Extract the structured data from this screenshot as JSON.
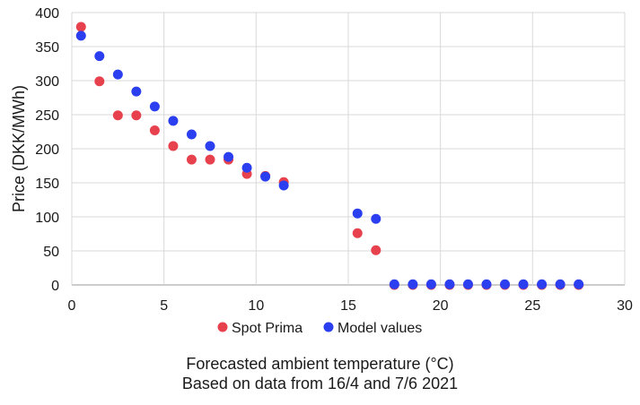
{
  "chart_data": {
    "type": "scatter",
    "ylabel": "Price (DKK/MWh)",
    "xlabel": "Forecasted ambient temperature (°C)",
    "subtitle": "Based on data from 16/4 and 7/6 2021",
    "xlim": [
      0,
      30
    ],
    "ylim": [
      0,
      400
    ],
    "xticks": [
      0,
      5,
      10,
      15,
      20,
      25,
      30
    ],
    "yticks": [
      0,
      50,
      100,
      150,
      200,
      250,
      300,
      350,
      400
    ],
    "grid": true,
    "legend_position": "bottom",
    "series": [
      {
        "name": "Spot Prima",
        "color": "#e8414e",
        "points": [
          [
            0.5,
            379
          ],
          [
            1.5,
            299
          ],
          [
            2.5,
            249
          ],
          [
            3.5,
            249
          ],
          [
            4.5,
            227
          ],
          [
            5.5,
            204
          ],
          [
            6.5,
            184
          ],
          [
            7.5,
            184
          ],
          [
            8.5,
            184
          ],
          [
            9.5,
            163
          ],
          [
            10.5,
            160
          ],
          [
            11.5,
            151
          ],
          [
            15.5,
            76
          ],
          [
            16.5,
            51
          ],
          [
            17.5,
            0
          ],
          [
            18.5,
            0
          ],
          [
            19.5,
            0
          ],
          [
            20.5,
            0
          ],
          [
            21.5,
            0
          ],
          [
            22.5,
            0
          ],
          [
            23.5,
            0
          ],
          [
            24.5,
            0
          ],
          [
            25.5,
            0
          ],
          [
            26.5,
            0
          ],
          [
            27.5,
            0
          ]
        ]
      },
      {
        "name": "Model values",
        "color": "#2b3ff0",
        "points": [
          [
            0.5,
            366
          ],
          [
            1.5,
            336
          ],
          [
            2.5,
            309
          ],
          [
            3.5,
            284
          ],
          [
            4.5,
            262
          ],
          [
            5.5,
            241
          ],
          [
            6.5,
            221
          ],
          [
            7.5,
            204
          ],
          [
            8.5,
            188
          ],
          [
            9.5,
            172
          ],
          [
            10.5,
            159
          ],
          [
            11.5,
            146
          ],
          [
            15.5,
            105
          ],
          [
            16.5,
            97
          ],
          [
            17.5,
            1
          ],
          [
            18.5,
            1
          ],
          [
            19.5,
            1
          ],
          [
            20.5,
            1
          ],
          [
            21.5,
            1
          ],
          [
            22.5,
            1
          ],
          [
            23.5,
            1
          ],
          [
            24.5,
            1
          ],
          [
            25.5,
            1
          ],
          [
            26.5,
            1
          ],
          [
            27.5,
            1
          ]
        ]
      }
    ]
  }
}
